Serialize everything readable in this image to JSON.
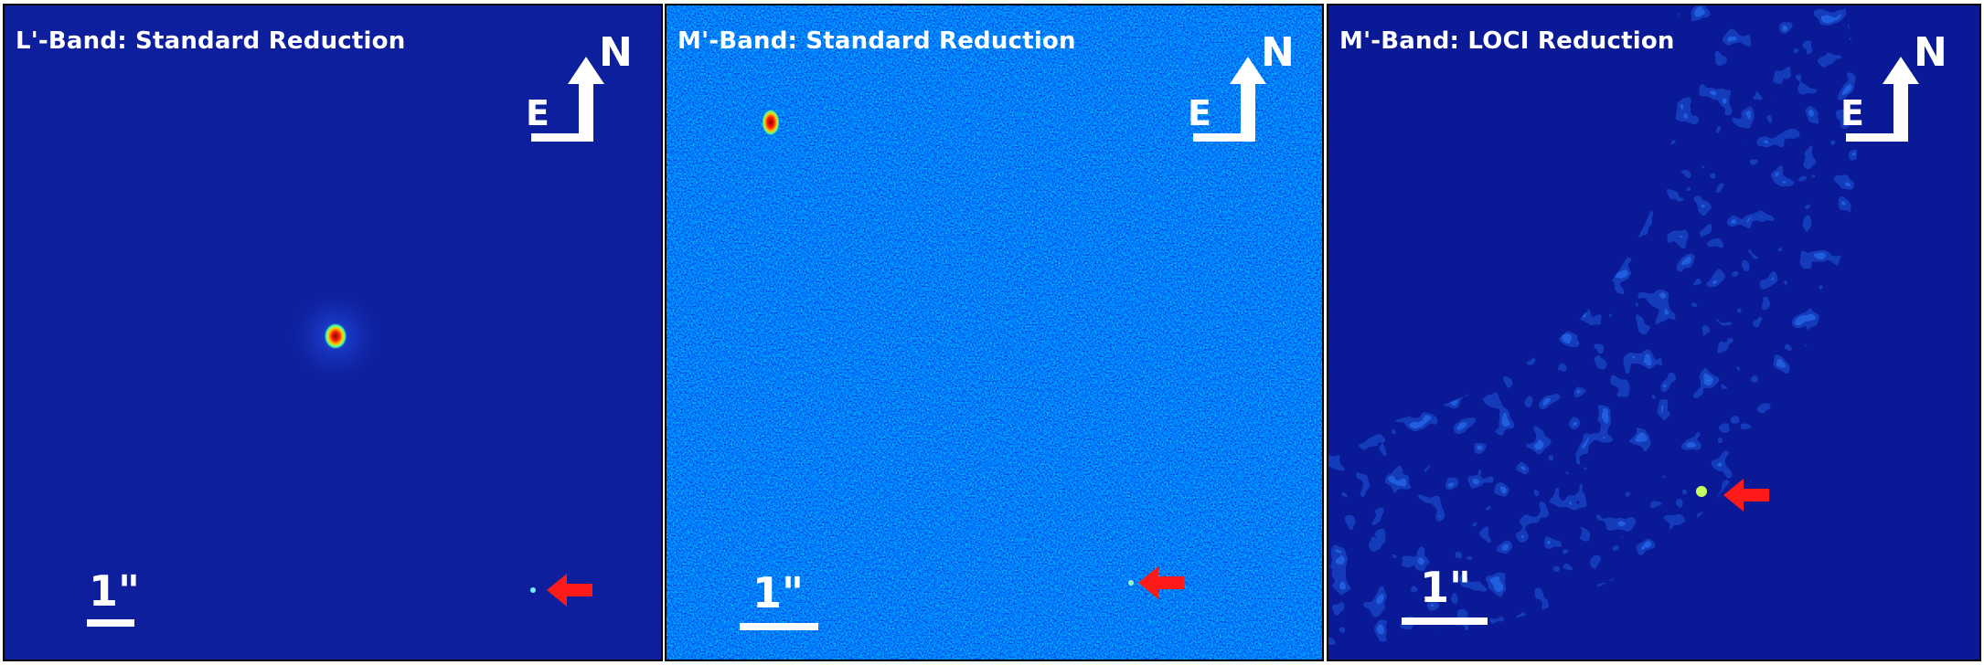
{
  "panels": [
    {
      "title": "L'-Band: Standard Reduction",
      "compass": {
        "north": "N",
        "east": "E"
      },
      "scale": "1\""
    },
    {
      "title": "M'-Band: Standard Reduction",
      "compass": {
        "north": "N",
        "east": "E"
      },
      "scale": "1\""
    },
    {
      "title": "M'-Band: LOCI Reduction",
      "compass": {
        "north": "N",
        "east": "E"
      },
      "scale": "1\""
    }
  ],
  "colors": {
    "background_dark": "#0a1a96",
    "background_noise": "#1e64e6",
    "marker_arrow": "#ff1a1a",
    "annotation": "#ffffff"
  }
}
